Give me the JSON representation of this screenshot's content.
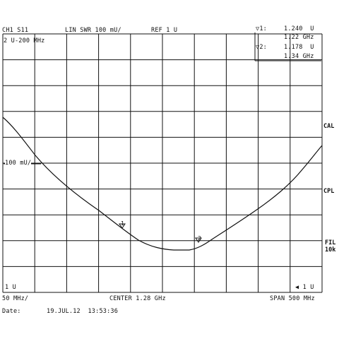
{
  "header": {
    "channel": "CH1 S11",
    "format": "LIN SWR 100 mU/",
    "ref": "REF 1 U",
    "marker_region": "2 U-200 MHz"
  },
  "markers": {
    "m1_label": "▽1:",
    "m1_value": "1.240  U",
    "m1_freq": "1.22 GHz",
    "m2_label": "▽2:",
    "m2_value": "1.178  U",
    "m2_freq": "1.34 GHz",
    "m1_plot_label": "1",
    "m2_plot_label": "2"
  },
  "side_labels": {
    "cal": "CAL",
    "cpl": "CPL",
    "fil_line1": "FIL",
    "fil_line2": "10k"
  },
  "plot": {
    "scale_label": "100 mU/",
    "bottom_left_label": "1 U",
    "bottom_right_label": "◀ 1 U"
  },
  "footer": {
    "start": "50 MHz/",
    "center": "CENTER 1.28 GHz",
    "span": "SPAN 500 MHz",
    "date_label": "Date:",
    "date_value": "19.JUL.12  13:53:36"
  },
  "colors": {
    "grid": "#111111",
    "trace": "#111111",
    "background": "#ffffff"
  }
}
